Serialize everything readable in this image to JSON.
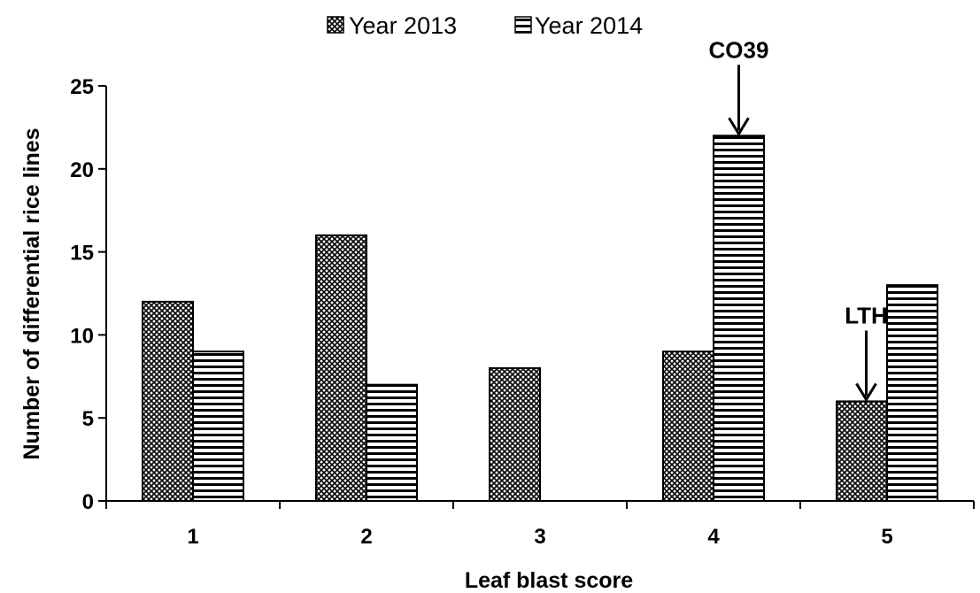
{
  "chart_data": {
    "type": "bar",
    "title": "",
    "xlabel": "Leaf blast score",
    "ylabel": "Number of differential rice lines",
    "categories": [
      "1",
      "2",
      "3",
      "4",
      "5"
    ],
    "ylim": [
      0,
      25
    ],
    "yticks": [
      0,
      5,
      10,
      15,
      20,
      25
    ],
    "grid": false,
    "legend_position": "top-center",
    "series": [
      {
        "name": "Year 2013",
        "values": [
          12,
          16,
          8,
          9,
          6
        ],
        "pattern": "crosshatch",
        "color": "#000000"
      },
      {
        "name": "Year 2014",
        "values": [
          9,
          7,
          0,
          22,
          13
        ],
        "pattern": "horizontal-lines",
        "color": "#000000"
      }
    ],
    "annotations": [
      {
        "label": "CO39",
        "category": "4",
        "series": 1,
        "arrow": "down"
      },
      {
        "label": "LTH",
        "category": "5",
        "series": 0,
        "arrow": "down"
      }
    ]
  }
}
